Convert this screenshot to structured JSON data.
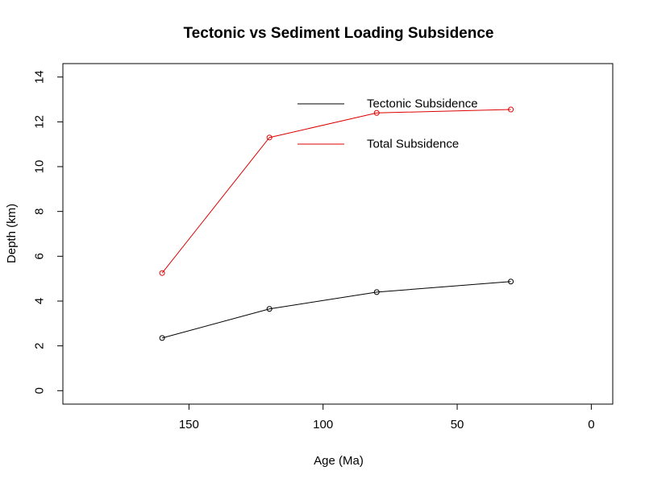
{
  "chart_data": {
    "type": "line",
    "title": "Tectonic vs Sediment Loading Subsidence",
    "xlabel": "Age (Ma)",
    "ylabel": "Depth (km)",
    "xlim": [
      197,
      -8
    ],
    "ylim": [
      14.6,
      -0.6
    ],
    "x_reversed": true,
    "y_reversed": true,
    "x_ticks": [
      150,
      100,
      50,
      0
    ],
    "y_ticks": [
      0,
      2,
      4,
      6,
      8,
      10,
      12,
      14
    ],
    "grid": false,
    "legend_position": "top-right",
    "x": [
      160,
      120,
      80,
      30
    ],
    "series": [
      {
        "name": "Tectonic Subsidence",
        "color": "#000000",
        "values": [
          2.35,
          3.65,
          4.4,
          4.87
        ]
      },
      {
        "name": "Total Subsidence",
        "color": "#dd0000",
        "values": [
          5.25,
          11.3,
          12.4,
          12.55
        ]
      }
    ]
  }
}
